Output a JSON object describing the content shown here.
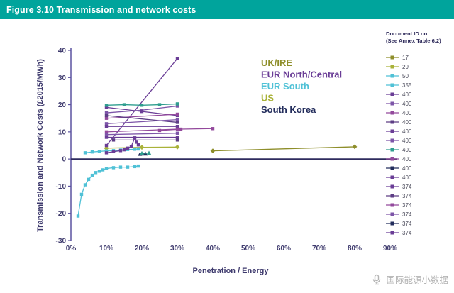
{
  "header": {
    "title": "Figure 3.10 Transmission and network costs"
  },
  "doc_legend": {
    "title_line1": "Document ID no.",
    "title_line2": "(See Annex Table 6.2)",
    "items": [
      {
        "id": "17",
        "color": "#8e8e2a"
      },
      {
        "id": "29",
        "color": "#a9b239"
      },
      {
        "id": "50",
        "color": "#4fc1d6"
      },
      {
        "id": "355",
        "color": "#4fc1d6"
      },
      {
        "id": "400",
        "color": "#6a3d96"
      },
      {
        "id": "400",
        "color": "#7d55a8"
      },
      {
        "id": "400",
        "color": "#93499c"
      },
      {
        "id": "400",
        "color": "#5d3d85"
      },
      {
        "id": "400",
        "color": "#6a3d96"
      },
      {
        "id": "400",
        "color": "#7d55a8"
      },
      {
        "id": "400",
        "color": "#2f9e8f"
      },
      {
        "id": "400",
        "color": "#93499c"
      },
      {
        "id": "400",
        "color": "#232d5c"
      },
      {
        "id": "400",
        "color": "#6a3d96"
      },
      {
        "id": "374",
        "color": "#6a3d96"
      },
      {
        "id": "374",
        "color": "#5d3d85"
      },
      {
        "id": "374",
        "color": "#93499c"
      },
      {
        "id": "374",
        "color": "#7d55a8"
      },
      {
        "id": "374",
        "color": "#232d5c"
      },
      {
        "id": "374",
        "color": "#6a3d96"
      }
    ]
  },
  "watermark": {
    "text": "国际能源小数据"
  },
  "chart_data": {
    "type": "line",
    "title": "Transmission and network costs",
    "xlabel": "Penetration / Energy",
    "ylabel": "Transmission and Network Costs (£2015/MWh)",
    "xlim": [
      0,
      90
    ],
    "ylim": [
      -30,
      40
    ],
    "x_ticks": [
      0,
      10,
      20,
      30,
      40,
      50,
      60,
      70,
      80,
      90
    ],
    "y_ticks": [
      -30,
      -20,
      -10,
      0,
      10,
      20,
      30,
      40
    ],
    "grid": false,
    "axis_color": "#5c53a0",
    "zero_line_color": "#2f2b5e",
    "region_legend": [
      {
        "label": "UK/IRE",
        "color": "#8e8e2a"
      },
      {
        "label": "EUR North/Central",
        "color": "#6a3d96"
      },
      {
        "label": "EUR South",
        "color": "#4fc1d6"
      },
      {
        "label": "US",
        "color": "#a9b239"
      },
      {
        "label": "South Korea",
        "color": "#232d5c"
      }
    ],
    "series": [
      {
        "doc": "17",
        "region": "UK/IRE",
        "color": "#8e8e2a",
        "marker": "diamond",
        "points": [
          [
            40,
            3
          ],
          [
            80,
            4.5
          ]
        ]
      },
      {
        "doc": "29",
        "region": "UK/IRE",
        "color": "#a9b239",
        "marker": "diamond",
        "points": [
          [
            10,
            4
          ],
          [
            20,
            4.3
          ],
          [
            30,
            4.4
          ]
        ]
      },
      {
        "doc": "50",
        "region": "EUR South",
        "color": "#4fc1d6",
        "marker": "square",
        "points": [
          [
            2,
            -21
          ],
          [
            3,
            -13
          ],
          [
            4,
            -9.5
          ],
          [
            5,
            -7.5
          ],
          [
            6,
            -6
          ],
          [
            7,
            -5
          ],
          [
            8,
            -4.5
          ],
          [
            9,
            -4
          ],
          [
            10,
            -3.5
          ],
          [
            12,
            -3.2
          ],
          [
            14,
            -3
          ],
          [
            16,
            -3
          ],
          [
            18,
            -2.8
          ],
          [
            19,
            -2.6
          ]
        ]
      },
      {
        "doc": "355",
        "region": "EUR South",
        "color": "#4fc1d6",
        "marker": "square",
        "points": [
          [
            4,
            2.3
          ],
          [
            6,
            2.6
          ],
          [
            8,
            2.8
          ],
          [
            10,
            3
          ],
          [
            12,
            3.1
          ],
          [
            14,
            3.3
          ],
          [
            16,
            3.5
          ],
          [
            18,
            3.6
          ],
          [
            19,
            3.7
          ]
        ]
      },
      {
        "doc": "400",
        "region": "EUR North/Central",
        "color": "#6a3d96",
        "marker": "square",
        "points": [
          [
            10,
            5
          ],
          [
            30,
            37
          ]
        ]
      },
      {
        "doc": "400",
        "region": "EUR North/Central",
        "color": "#7d55a8",
        "marker": "square",
        "points": [
          [
            10,
            17
          ],
          [
            20,
            18
          ],
          [
            30,
            19.5
          ]
        ]
      },
      {
        "doc": "400",
        "region": "EUR North/Central",
        "color": "#6a3d96",
        "marker": "square",
        "points": [
          [
            10,
            19
          ],
          [
            20,
            17.5
          ],
          [
            30,
            16
          ]
        ]
      },
      {
        "doc": "400",
        "region": "EUR North/Central",
        "color": "#93499c",
        "marker": "square",
        "points": [
          [
            10,
            15
          ],
          [
            30,
            16.5
          ]
        ]
      },
      {
        "doc": "400",
        "region": "EUR North/Central",
        "color": "#5d3d85",
        "marker": "square",
        "points": [
          [
            10,
            16
          ],
          [
            30,
            13.5
          ]
        ]
      },
      {
        "doc": "400",
        "region": "EUR North/Central",
        "color": "#7d55a8",
        "marker": "square",
        "points": [
          [
            10,
            13
          ],
          [
            30,
            14.5
          ]
        ]
      },
      {
        "doc": "400",
        "region": "EUR North/Central",
        "color": "#6a3d96",
        "marker": "square",
        "points": [
          [
            10,
            12
          ],
          [
            30,
            12
          ]
        ]
      },
      {
        "doc": "400",
        "region": "US",
        "color": "#2f9e8f",
        "marker": "square",
        "points": [
          [
            10,
            19.8
          ],
          [
            15,
            20
          ],
          [
            20,
            19.8
          ],
          [
            25,
            20
          ],
          [
            30,
            20.3
          ]
        ]
      },
      {
        "doc": "400",
        "region": "EUR North/Central",
        "color": "#93499c",
        "marker": "square",
        "points": [
          [
            10,
            10
          ],
          [
            30,
            11
          ]
        ]
      },
      {
        "doc": "400",
        "region": "EUR North/Central",
        "color": "#7d55a8",
        "marker": "square",
        "points": [
          [
            10,
            9
          ],
          [
            30,
            9.5
          ]
        ]
      },
      {
        "doc": "374",
        "region": "EUR North/Central",
        "color": "#6a3d96",
        "marker": "square",
        "points": [
          [
            10,
            8
          ],
          [
            30,
            8
          ]
        ]
      },
      {
        "doc": "374",
        "region": "EUR North/Central",
        "color": "#5d3d85",
        "marker": "square",
        "points": [
          [
            12,
            7
          ],
          [
            30,
            7
          ]
        ]
      },
      {
        "doc": "374",
        "region": "EUR North/Central",
        "color": "#93499c",
        "marker": "square",
        "points": [
          [
            25,
            10.5
          ],
          [
            31,
            11
          ],
          [
            40,
            11.2
          ]
        ]
      },
      {
        "doc": "374",
        "region": "EUR North/Central",
        "color": "#6a3d96",
        "marker": "square",
        "points": [
          [
            10,
            2.3
          ],
          [
            12,
            2.7
          ],
          [
            14,
            3.1
          ],
          [
            15,
            3.4
          ],
          [
            16,
            4
          ],
          [
            17,
            4.6
          ],
          [
            18,
            7.8
          ],
          [
            18.5,
            6.2
          ],
          [
            19,
            5.2
          ]
        ]
      },
      {
        "doc": "374",
        "region": "South Korea",
        "color": "#232d5c",
        "marker": "triangle",
        "points": [
          [
            19.5,
            1.8
          ],
          [
            21,
            1.9
          ]
        ]
      },
      {
        "doc": "374",
        "region": "US",
        "color": "#2f9e8f",
        "marker": "triangle",
        "points": [
          [
            20,
            2.1
          ],
          [
            22,
            2.2
          ]
        ]
      }
    ]
  }
}
